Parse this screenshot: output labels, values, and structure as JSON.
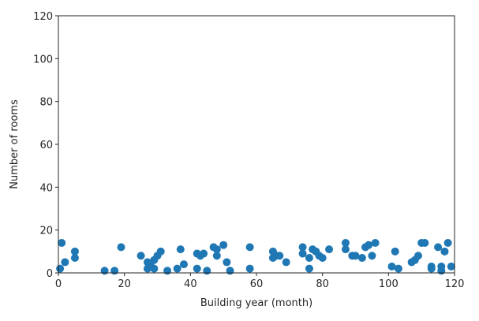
{
  "chart_data": {
    "type": "scatter",
    "title": "",
    "xlabel": "Building year (month)",
    "ylabel": "Number of rooms",
    "xlim": [
      0,
      120
    ],
    "ylim": [
      0,
      120
    ],
    "xticks": [
      "0",
      "20",
      "40",
      "60",
      "80",
      "100",
      "120"
    ],
    "yticks": [
      "0",
      "20",
      "40",
      "60",
      "80",
      "100",
      "120"
    ],
    "grid": false,
    "marker_color": "#1f77b4",
    "series": [
      {
        "points": [
          [
            0.5,
            2
          ],
          [
            1,
            14
          ],
          [
            2,
            5
          ],
          [
            5,
            7
          ],
          [
            5,
            10
          ],
          [
            14,
            1
          ],
          [
            17,
            1
          ],
          [
            19,
            12
          ],
          [
            25,
            8
          ],
          [
            27,
            5
          ],
          [
            27,
            2
          ],
          [
            28,
            3
          ],
          [
            29,
            6
          ],
          [
            29,
            2
          ],
          [
            30,
            8
          ],
          [
            31,
            10
          ],
          [
            33,
            1
          ],
          [
            36,
            2
          ],
          [
            37,
            11
          ],
          [
            38,
            4
          ],
          [
            42,
            2
          ],
          [
            42,
            9
          ],
          [
            43,
            8
          ],
          [
            44,
            9
          ],
          [
            45,
            1
          ],
          [
            47,
            12
          ],
          [
            48,
            11
          ],
          [
            48,
            8
          ],
          [
            50,
            13
          ],
          [
            51,
            5
          ],
          [
            52,
            1
          ],
          [
            58,
            12
          ],
          [
            58,
            2
          ],
          [
            65,
            7
          ],
          [
            65,
            10
          ],
          [
            66,
            8
          ],
          [
            67,
            8
          ],
          [
            69,
            5
          ],
          [
            74,
            12
          ],
          [
            74,
            9
          ],
          [
            76,
            7
          ],
          [
            76,
            2
          ],
          [
            77,
            11
          ],
          [
            78,
            10
          ],
          [
            79,
            8
          ],
          [
            80,
            7
          ],
          [
            82,
            11
          ],
          [
            87,
            14
          ],
          [
            87,
            11
          ],
          [
            89,
            8
          ],
          [
            90,
            8
          ],
          [
            92,
            7
          ],
          [
            93,
            12
          ],
          [
            94,
            13
          ],
          [
            95,
            8
          ],
          [
            96,
            14
          ],
          [
            101,
            3
          ],
          [
            102,
            10
          ],
          [
            103,
            2
          ],
          [
            107,
            5
          ],
          [
            108,
            6
          ],
          [
            109,
            8
          ],
          [
            110,
            14
          ],
          [
            111,
            14
          ],
          [
            113,
            3
          ],
          [
            113,
            2
          ],
          [
            115,
            12
          ],
          [
            116,
            3
          ],
          [
            116,
            1
          ],
          [
            117,
            10
          ],
          [
            118,
            14
          ],
          [
            119,
            3
          ]
        ]
      }
    ]
  }
}
